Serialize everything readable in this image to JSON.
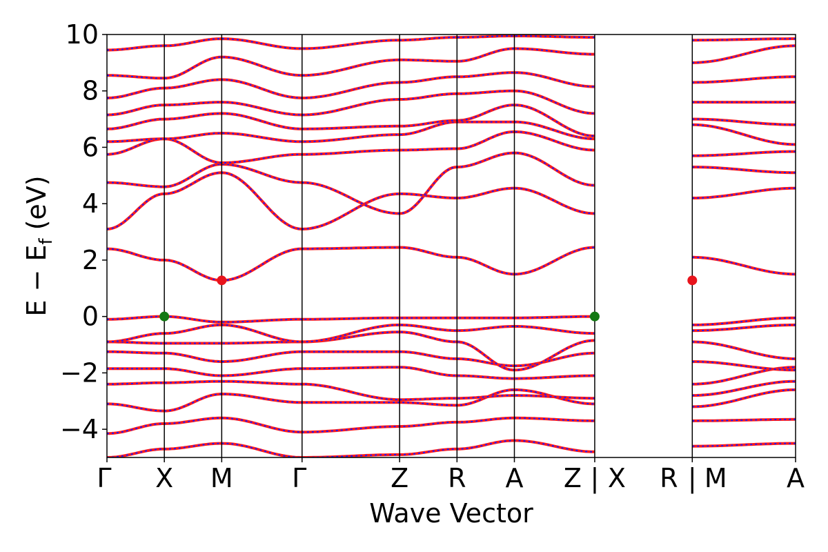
{
  "chart_data": {
    "type": "line",
    "title": "",
    "xlabel": "Wave Vector",
    "ylabel": "E − E_f (eV)",
    "ylabel_parts": {
      "main": "E − E",
      "sub": "f",
      "unit": "(eV)"
    },
    "ylim": [
      -5,
      10
    ],
    "yticks": [
      -4,
      -2,
      0,
      2,
      4,
      6,
      8,
      10
    ],
    "ytick_labels": [
      "−4",
      "−2",
      "0",
      "2",
      "4",
      "6",
      "8",
      "10"
    ],
    "grid": false,
    "k_labels": [
      "Γ",
      "X",
      "M",
      "Γ",
      "Z",
      "R",
      "A",
      "Z|X",
      "R|M",
      "A"
    ],
    "k_label_display": [
      "Γ",
      "X",
      "M",
      "Γ",
      "Z",
      "R",
      "A",
      "Z",
      "|",
      "X",
      "R",
      "|",
      "M",
      "A"
    ],
    "k_positions": [
      0,
      1,
      2,
      3.4,
      5.1,
      6.1,
      7.1,
      8.5,
      10.2,
      12.0
    ],
    "colors": {
      "band_primary": "#ff1a1a",
      "band_secondary": "#1a1aff",
      "cbm_marker": "#e8141c",
      "vbm_marker": "#127812",
      "axis": "#000000"
    },
    "markers": [
      {
        "name": "VBM",
        "x": 1.0,
        "y": 0.0,
        "color": "#127812"
      },
      {
        "name": "VBM",
        "x": 8.5,
        "y": 0.0,
        "color": "#127812"
      },
      {
        "name": "CBM",
        "x": 2.0,
        "y": 1.28,
        "color": "#e8141c"
      },
      {
        "name": "CBM",
        "x": 10.2,
        "y": 1.28,
        "color": "#e8141c"
      }
    ],
    "series": [
      {
        "x": [
          0,
          1,
          2,
          3.4,
          5.1,
          6.1,
          7.1,
          8.5,
          10.2,
          12.0
        ],
        "y": [
          -5.0,
          -4.7,
          -4.5,
          -5.0,
          -4.9,
          -4.7,
          -4.4,
          -4.8,
          -4.6,
          -4.5
        ],
        "segments": [
          [
            0,
            7
          ],
          [
            8,
            9
          ]
        ]
      },
      {
        "x": [
          0,
          1,
          2,
          3.4,
          5.1,
          6.1,
          7.1,
          8.5,
          10.2,
          12.0
        ],
        "y": [
          -4.15,
          -3.8,
          -3.6,
          -4.1,
          -3.9,
          -3.75,
          -3.6,
          -3.7,
          -3.7,
          -3.65
        ],
        "segments": [
          [
            0,
            7
          ],
          [
            8,
            9
          ]
        ]
      },
      {
        "x": [
          0,
          1,
          2,
          3.4,
          5.1,
          6.1,
          7.1,
          8.5,
          10.2,
          12.0
        ],
        "y": [
          -3.1,
          -3.35,
          -2.75,
          -3.05,
          -3.05,
          -3.15,
          -2.6,
          -3.1,
          -3.2,
          -2.6
        ],
        "segments": [
          [
            0,
            7
          ],
          [
            8,
            9
          ]
        ]
      },
      {
        "x": [
          0,
          1,
          2,
          3.4,
          5.1,
          6.1,
          7.1,
          8.5,
          10.2,
          12.0
        ],
        "y": [
          -2.4,
          -2.35,
          -2.3,
          -2.4,
          -2.95,
          -2.9,
          -2.8,
          -2.9,
          -2.8,
          -2.3
        ],
        "segments": [
          [
            0,
            7
          ],
          [
            8,
            9
          ]
        ]
      },
      {
        "x": [
          0,
          1,
          2,
          3.4,
          5.1,
          6.1,
          7.1,
          8.5,
          10.2,
          12.0
        ],
        "y": [
          -1.85,
          -1.85,
          -2.1,
          -1.85,
          -1.8,
          -2.1,
          -2.2,
          -2.1,
          -2.4,
          -1.8
        ],
        "segments": [
          [
            0,
            7
          ],
          [
            8,
            9
          ]
        ]
      },
      {
        "x": [
          0,
          1,
          2,
          3.4,
          5.1,
          6.1,
          7.1,
          8.5,
          10.2,
          12.0
        ],
        "y": [
          -1.25,
          -1.3,
          -1.6,
          -1.25,
          -1.25,
          -1.5,
          -1.75,
          -1.3,
          -1.6,
          -1.9
        ],
        "segments": [
          [
            0,
            7
          ],
          [
            8,
            9
          ]
        ]
      },
      {
        "x": [
          0,
          1,
          2,
          3.4,
          5.1,
          6.1,
          7.1,
          8.5,
          10.2,
          12.0
        ],
        "y": [
          -0.9,
          -0.95,
          -0.95,
          -0.9,
          -0.55,
          -0.9,
          -1.9,
          -0.85,
          -0.9,
          -1.5
        ],
        "segments": [
          [
            0,
            7
          ],
          [
            8,
            9
          ]
        ]
      },
      {
        "x": [
          0,
          1,
          2,
          3.4,
          5.1,
          6.1,
          7.1,
          8.5,
          10.2,
          12.0
        ],
        "y": [
          -0.9,
          -0.6,
          -0.3,
          -0.9,
          -0.3,
          -0.5,
          -0.35,
          -0.6,
          -0.5,
          -0.3
        ],
        "segments": [
          [
            0,
            7
          ],
          [
            8,
            9
          ]
        ]
      },
      {
        "x": [
          0,
          1,
          2,
          3.4,
          5.1,
          6.1,
          7.1,
          8.5,
          10.2,
          12.0
        ],
        "y": [
          -0.1,
          0.0,
          -0.2,
          -0.1,
          -0.05,
          -0.05,
          -0.05,
          0.0,
          -0.3,
          -0.05
        ],
        "segments": [
          [
            0,
            7
          ],
          [
            8,
            9
          ]
        ]
      },
      {
        "x": [
          0,
          1,
          2,
          3.4,
          5.1,
          6.1,
          7.1,
          8.5,
          10.2,
          12.0
        ],
        "y": [
          2.4,
          2.0,
          1.28,
          2.4,
          2.45,
          2.1,
          1.5,
          2.45,
          2.1,
          1.5
        ],
        "segments": [
          [
            0,
            7
          ],
          [
            8,
            9
          ]
        ],
        "alt_y_right": [
          2.0,
          2.1,
          1.28,
          1.5
        ]
      },
      {
        "x": [
          0,
          1,
          2,
          3.4,
          5.1,
          6.1,
          7.1,
          8.5,
          10.2,
          12.0
        ],
        "y": [
          3.1,
          4.35,
          5.1,
          3.1,
          4.35,
          4.2,
          4.55,
          3.65,
          4.2,
          4.55
        ],
        "segments": [
          [
            0,
            7
          ],
          [
            8,
            9
          ]
        ]
      },
      {
        "x": [
          0,
          1,
          2,
          3.4,
          5.1,
          6.1,
          7.1,
          8.5,
          10.2,
          12.0
        ],
        "y": [
          4.75,
          4.6,
          5.4,
          4.75,
          3.65,
          5.3,
          5.8,
          4.65,
          5.3,
          5.1
        ],
        "segments": [
          [
            0,
            7
          ],
          [
            8,
            9
          ]
        ]
      },
      {
        "x": [
          0,
          1,
          2,
          3.4,
          5.1,
          6.1,
          7.1,
          8.5,
          10.2,
          12.0
        ],
        "y": [
          5.75,
          6.3,
          5.45,
          5.75,
          5.9,
          5.95,
          6.55,
          5.9,
          5.7,
          5.85
        ],
        "segments": [
          [
            0,
            7
          ],
          [
            8,
            9
          ]
        ]
      },
      {
        "x": [
          0,
          1,
          2,
          3.4,
          5.1,
          6.1,
          7.1,
          8.5,
          10.2,
          12.0
        ],
        "y": [
          6.2,
          6.3,
          6.5,
          6.2,
          6.45,
          6.9,
          6.9,
          6.3,
          6.8,
          6.1
        ],
        "segments": [
          [
            0,
            7
          ],
          [
            8,
            9
          ]
        ]
      },
      {
        "x": [
          0,
          1,
          2,
          3.4,
          5.1,
          6.1,
          7.1,
          8.5,
          10.2,
          12.0
        ],
        "y": [
          6.65,
          7.0,
          7.2,
          6.65,
          6.75,
          6.95,
          7.5,
          6.4,
          7.0,
          6.8
        ],
        "segments": [
          [
            0,
            7
          ],
          [
            8,
            9
          ]
        ]
      },
      {
        "x": [
          0,
          1,
          2,
          3.4,
          5.1,
          6.1,
          7.1,
          8.5,
          10.2,
          12.0
        ],
        "y": [
          7.15,
          7.5,
          7.6,
          7.15,
          7.7,
          7.9,
          8.0,
          7.2,
          7.6,
          7.6
        ],
        "segments": [
          [
            0,
            7
          ],
          [
            8,
            9
          ]
        ]
      },
      {
        "x": [
          0,
          1,
          2,
          3.4,
          5.1,
          6.1,
          7.1,
          8.5,
          10.2,
          12.0
        ],
        "y": [
          7.75,
          8.1,
          8.4,
          7.75,
          8.3,
          8.5,
          8.65,
          8.15,
          8.3,
          8.5
        ],
        "segments": [
          [
            0,
            7
          ],
          [
            8,
            9
          ]
        ]
      },
      {
        "x": [
          0,
          1,
          2,
          3.4,
          5.1,
          6.1,
          7.1,
          8.5,
          10.2,
          12.0
        ],
        "y": [
          8.55,
          8.45,
          9.2,
          8.55,
          9.1,
          9.05,
          9.5,
          9.3,
          9.0,
          9.6
        ],
        "segments": [
          [
            0,
            7
          ],
          [
            8,
            9
          ]
        ]
      },
      {
        "x": [
          0,
          1,
          2,
          3.4,
          5.1,
          6.1,
          7.1,
          8.5,
          10.2,
          12.0
        ],
        "y": [
          9.45,
          9.6,
          9.85,
          9.5,
          9.8,
          9.9,
          9.95,
          9.9,
          9.8,
          9.85
        ],
        "segments": [
          [
            0,
            7
          ],
          [
            8,
            9
          ]
        ]
      }
    ]
  }
}
